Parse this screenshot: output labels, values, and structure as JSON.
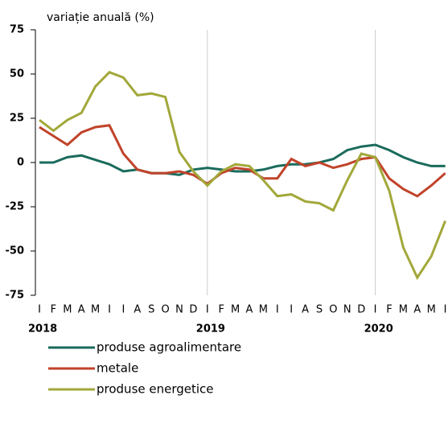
{
  "chart_data": {
    "type": "line",
    "title": "variație anuală (%)",
    "categories": [
      "I",
      "F",
      "M",
      "A",
      "M",
      "I",
      "I",
      "A",
      "S",
      "O",
      "N",
      "D",
      "I",
      "F",
      "M",
      "A",
      "M",
      "I",
      "I",
      "A",
      "S",
      "O",
      "N",
      "D",
      "I",
      "F",
      "M",
      "A",
      "M",
      "I"
    ],
    "year_labels": [
      {
        "index": 0,
        "label": "2018"
      },
      {
        "index": 12,
        "label": "2019"
      },
      {
        "index": 24,
        "label": "2020"
      }
    ],
    "series": [
      {
        "name": "produse agroalimentare",
        "color": "#1a6b5c",
        "values": [
          0,
          0,
          3,
          4,
          1.5,
          -1,
          -5,
          -4,
          -6,
          -6,
          -7,
          -4,
          -3,
          -4,
          -5,
          -5,
          -4,
          -2,
          -1,
          -1,
          0,
          2,
          7,
          9,
          10,
          7,
          3,
          0,
          -2,
          -2
        ]
      },
      {
        "name": "metale",
        "color": "#c1432a",
        "values": [
          20,
          15,
          10,
          17,
          20,
          21,
          5,
          -4,
          -6,
          -6,
          -5,
          -7,
          -12,
          -6,
          -3,
          -4,
          -9,
          -9,
          2,
          -2,
          0,
          -3,
          -1,
          2,
          3,
          -9,
          -15,
          -19,
          -13,
          -6
        ]
      },
      {
        "name": "produse energetice",
        "color": "#a2a83a",
        "values": [
          24,
          18,
          24,
          28,
          43,
          51,
          48,
          38,
          39,
          37,
          6,
          -5,
          -13,
          -5,
          -1,
          -2,
          -10,
          -19,
          -18,
          -22,
          -23,
          -27,
          -10,
          5,
          3,
          -16,
          -48,
          -65,
          -53,
          -33
        ]
      }
    ],
    "ylim": [
      -75,
      75
    ],
    "yticks": [
      75,
      50,
      25,
      0,
      -25,
      -50,
      -75
    ],
    "grid": true
  }
}
